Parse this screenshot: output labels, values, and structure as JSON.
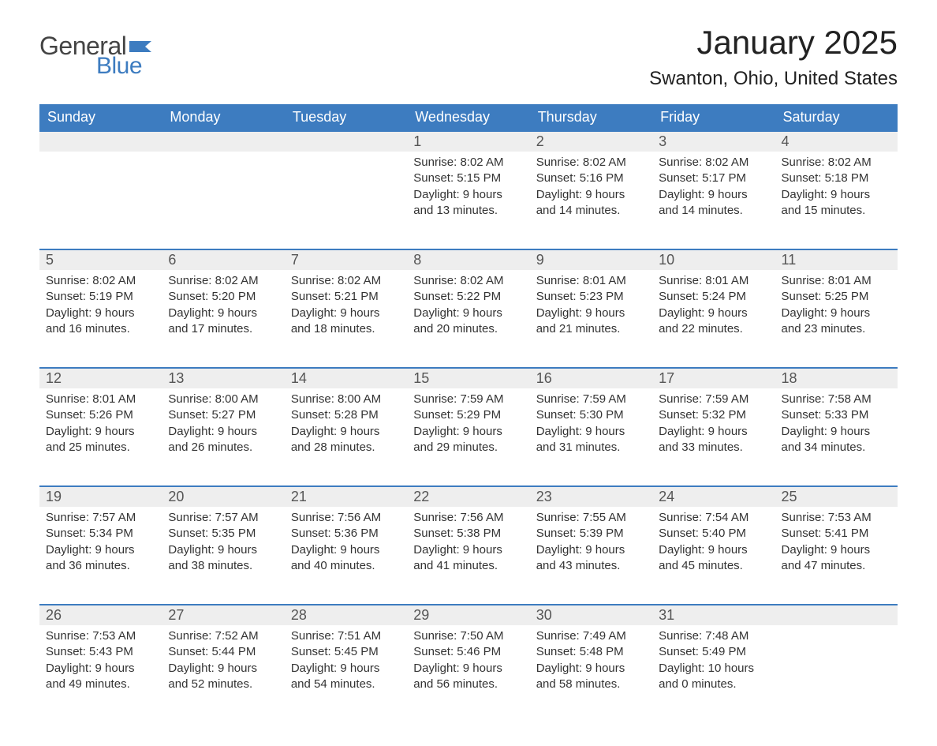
{
  "logo": {
    "text1": "General",
    "text2": "Blue",
    "flag_color": "#3d7cc0"
  },
  "title": "January 2025",
  "location": "Swanton, Ohio, United States",
  "colors": {
    "header_bg": "#3d7cc0",
    "header_text": "#ffffff",
    "daynum_bg": "#eeeeee",
    "border_top": "#3d7cc0",
    "body_text": "#333333"
  },
  "day_headers": [
    "Sunday",
    "Monday",
    "Tuesday",
    "Wednesday",
    "Thursday",
    "Friday",
    "Saturday"
  ],
  "weeks": [
    [
      {
        "n": "",
        "sunrise": "",
        "sunset": "",
        "daylight": ""
      },
      {
        "n": "",
        "sunrise": "",
        "sunset": "",
        "daylight": ""
      },
      {
        "n": "",
        "sunrise": "",
        "sunset": "",
        "daylight": ""
      },
      {
        "n": "1",
        "sunrise": "Sunrise: 8:02 AM",
        "sunset": "Sunset: 5:15 PM",
        "daylight": "Daylight: 9 hours and 13 minutes."
      },
      {
        "n": "2",
        "sunrise": "Sunrise: 8:02 AM",
        "sunset": "Sunset: 5:16 PM",
        "daylight": "Daylight: 9 hours and 14 minutes."
      },
      {
        "n": "3",
        "sunrise": "Sunrise: 8:02 AM",
        "sunset": "Sunset: 5:17 PM",
        "daylight": "Daylight: 9 hours and 14 minutes."
      },
      {
        "n": "4",
        "sunrise": "Sunrise: 8:02 AM",
        "sunset": "Sunset: 5:18 PM",
        "daylight": "Daylight: 9 hours and 15 minutes."
      }
    ],
    [
      {
        "n": "5",
        "sunrise": "Sunrise: 8:02 AM",
        "sunset": "Sunset: 5:19 PM",
        "daylight": "Daylight: 9 hours and 16 minutes."
      },
      {
        "n": "6",
        "sunrise": "Sunrise: 8:02 AM",
        "sunset": "Sunset: 5:20 PM",
        "daylight": "Daylight: 9 hours and 17 minutes."
      },
      {
        "n": "7",
        "sunrise": "Sunrise: 8:02 AM",
        "sunset": "Sunset: 5:21 PM",
        "daylight": "Daylight: 9 hours and 18 minutes."
      },
      {
        "n": "8",
        "sunrise": "Sunrise: 8:02 AM",
        "sunset": "Sunset: 5:22 PM",
        "daylight": "Daylight: 9 hours and 20 minutes."
      },
      {
        "n": "9",
        "sunrise": "Sunrise: 8:01 AM",
        "sunset": "Sunset: 5:23 PM",
        "daylight": "Daylight: 9 hours and 21 minutes."
      },
      {
        "n": "10",
        "sunrise": "Sunrise: 8:01 AM",
        "sunset": "Sunset: 5:24 PM",
        "daylight": "Daylight: 9 hours and 22 minutes."
      },
      {
        "n": "11",
        "sunrise": "Sunrise: 8:01 AM",
        "sunset": "Sunset: 5:25 PM",
        "daylight": "Daylight: 9 hours and 23 minutes."
      }
    ],
    [
      {
        "n": "12",
        "sunrise": "Sunrise: 8:01 AM",
        "sunset": "Sunset: 5:26 PM",
        "daylight": "Daylight: 9 hours and 25 minutes."
      },
      {
        "n": "13",
        "sunrise": "Sunrise: 8:00 AM",
        "sunset": "Sunset: 5:27 PM",
        "daylight": "Daylight: 9 hours and 26 minutes."
      },
      {
        "n": "14",
        "sunrise": "Sunrise: 8:00 AM",
        "sunset": "Sunset: 5:28 PM",
        "daylight": "Daylight: 9 hours and 28 minutes."
      },
      {
        "n": "15",
        "sunrise": "Sunrise: 7:59 AM",
        "sunset": "Sunset: 5:29 PM",
        "daylight": "Daylight: 9 hours and 29 minutes."
      },
      {
        "n": "16",
        "sunrise": "Sunrise: 7:59 AM",
        "sunset": "Sunset: 5:30 PM",
        "daylight": "Daylight: 9 hours and 31 minutes."
      },
      {
        "n": "17",
        "sunrise": "Sunrise: 7:59 AM",
        "sunset": "Sunset: 5:32 PM",
        "daylight": "Daylight: 9 hours and 33 minutes."
      },
      {
        "n": "18",
        "sunrise": "Sunrise: 7:58 AM",
        "sunset": "Sunset: 5:33 PM",
        "daylight": "Daylight: 9 hours and 34 minutes."
      }
    ],
    [
      {
        "n": "19",
        "sunrise": "Sunrise: 7:57 AM",
        "sunset": "Sunset: 5:34 PM",
        "daylight": "Daylight: 9 hours and 36 minutes."
      },
      {
        "n": "20",
        "sunrise": "Sunrise: 7:57 AM",
        "sunset": "Sunset: 5:35 PM",
        "daylight": "Daylight: 9 hours and 38 minutes."
      },
      {
        "n": "21",
        "sunrise": "Sunrise: 7:56 AM",
        "sunset": "Sunset: 5:36 PM",
        "daylight": "Daylight: 9 hours and 40 minutes."
      },
      {
        "n": "22",
        "sunrise": "Sunrise: 7:56 AM",
        "sunset": "Sunset: 5:38 PM",
        "daylight": "Daylight: 9 hours and 41 minutes."
      },
      {
        "n": "23",
        "sunrise": "Sunrise: 7:55 AM",
        "sunset": "Sunset: 5:39 PM",
        "daylight": "Daylight: 9 hours and 43 minutes."
      },
      {
        "n": "24",
        "sunrise": "Sunrise: 7:54 AM",
        "sunset": "Sunset: 5:40 PM",
        "daylight": "Daylight: 9 hours and 45 minutes."
      },
      {
        "n": "25",
        "sunrise": "Sunrise: 7:53 AM",
        "sunset": "Sunset: 5:41 PM",
        "daylight": "Daylight: 9 hours and 47 minutes."
      }
    ],
    [
      {
        "n": "26",
        "sunrise": "Sunrise: 7:53 AM",
        "sunset": "Sunset: 5:43 PM",
        "daylight": "Daylight: 9 hours and 49 minutes."
      },
      {
        "n": "27",
        "sunrise": "Sunrise: 7:52 AM",
        "sunset": "Sunset: 5:44 PM",
        "daylight": "Daylight: 9 hours and 52 minutes."
      },
      {
        "n": "28",
        "sunrise": "Sunrise: 7:51 AM",
        "sunset": "Sunset: 5:45 PM",
        "daylight": "Daylight: 9 hours and 54 minutes."
      },
      {
        "n": "29",
        "sunrise": "Sunrise: 7:50 AM",
        "sunset": "Sunset: 5:46 PM",
        "daylight": "Daylight: 9 hours and 56 minutes."
      },
      {
        "n": "30",
        "sunrise": "Sunrise: 7:49 AM",
        "sunset": "Sunset: 5:48 PM",
        "daylight": "Daylight: 9 hours and 58 minutes."
      },
      {
        "n": "31",
        "sunrise": "Sunrise: 7:48 AM",
        "sunset": "Sunset: 5:49 PM",
        "daylight": "Daylight: 10 hours and 0 minutes."
      },
      {
        "n": "",
        "sunrise": "",
        "sunset": "",
        "daylight": ""
      }
    ]
  ]
}
